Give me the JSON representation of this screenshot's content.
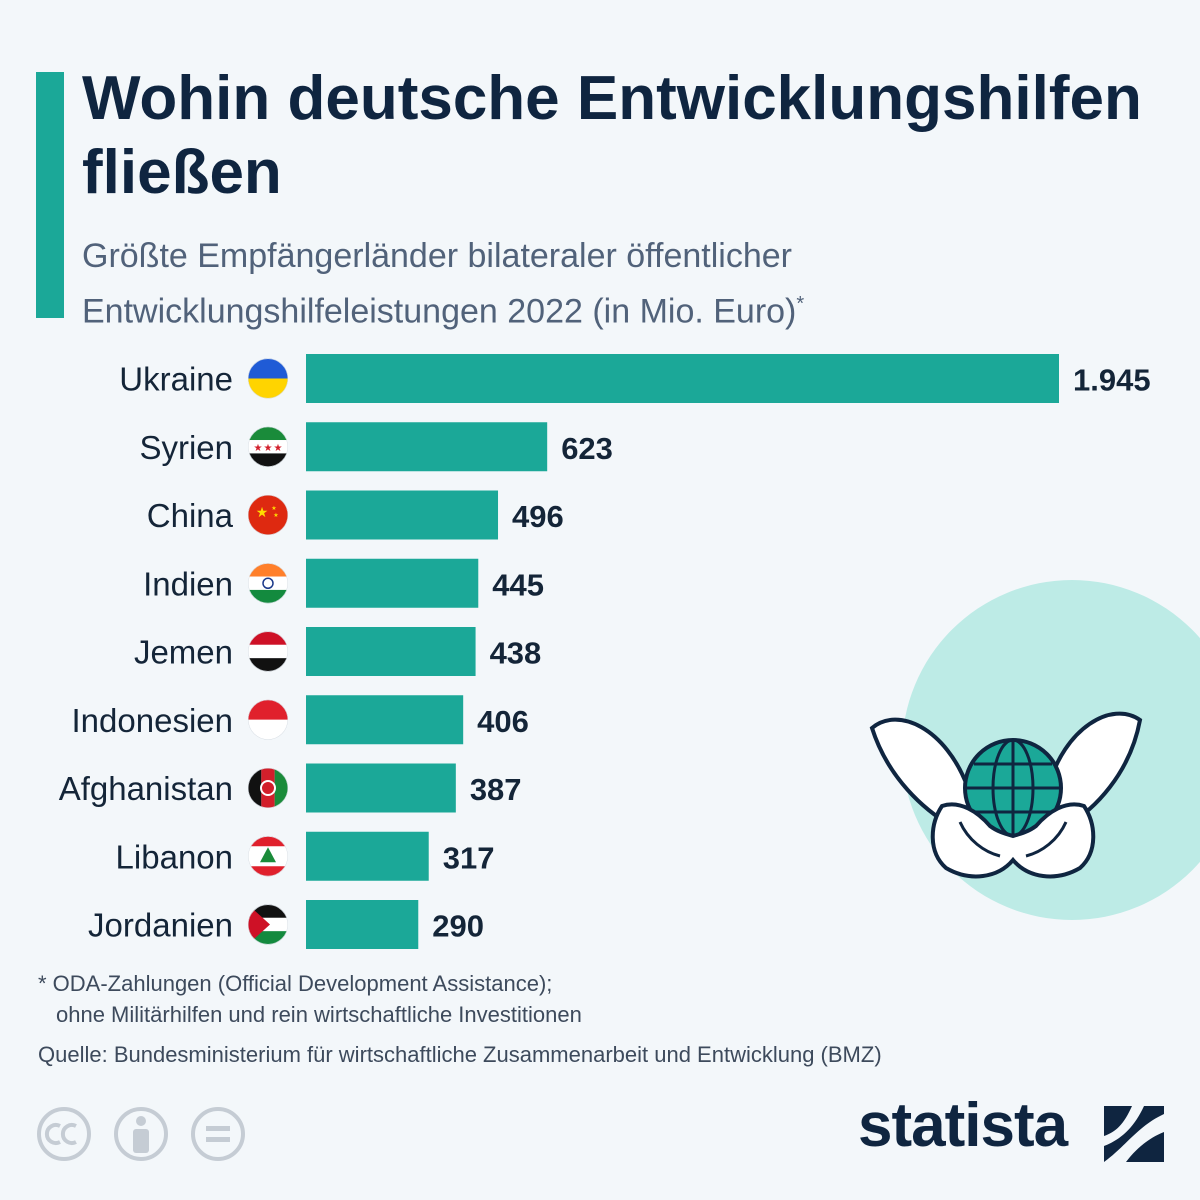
{
  "title": "Wohin deutsche Entwicklungshilfen fließen",
  "subtitle": {
    "text": "Größte Empfängerländer bilateraler öffentlicher Entwicklungshilfeleistungen 2022 (in Mio. Euro)",
    "marker": "*"
  },
  "chart_data": {
    "type": "bar",
    "orientation": "horizontal",
    "title": "Wohin deutsche Entwicklungshilfen fließen",
    "unit": "Mio. Euro",
    "categories": [
      "Ukraine",
      "Syrien",
      "China",
      "Indien",
      "Jemen",
      "Indonesien",
      "Afghanistan",
      "Libanon",
      "Jordanien"
    ],
    "values": [
      1945,
      623,
      496,
      445,
      438,
      406,
      387,
      317,
      290
    ],
    "value_labels": [
      "1.945",
      "623",
      "496",
      "445",
      "438",
      "406",
      "387",
      "317",
      "290"
    ],
    "flags": [
      "ukraine-flag-icon",
      "syria-flag-icon",
      "china-flag-icon",
      "india-flag-icon",
      "yemen-flag-icon",
      "indonesia-flag-icon",
      "afghanistan-flag-icon",
      "lebanon-flag-icon",
      "jordan-flag-icon"
    ],
    "xlim": [
      0,
      1945
    ],
    "grid": false,
    "color": "#1ba898"
  },
  "footnote": {
    "line1": "* ODA-Zahlungen (Official Development Assistance);",
    "line2": "ohne Militärhilfen und rein wirtschaftliche Investitionen"
  },
  "source": "Quelle: Bundesministerium für wirtschaftliche Zusammenarbeit und Entwicklung (BMZ)",
  "brand": "statista",
  "colors": {
    "accent": "#1ba898",
    "title": "#0f2540",
    "subtitle": "#51627a",
    "background": "#f3f7fa",
    "deco_circle": "#bdebe6"
  }
}
